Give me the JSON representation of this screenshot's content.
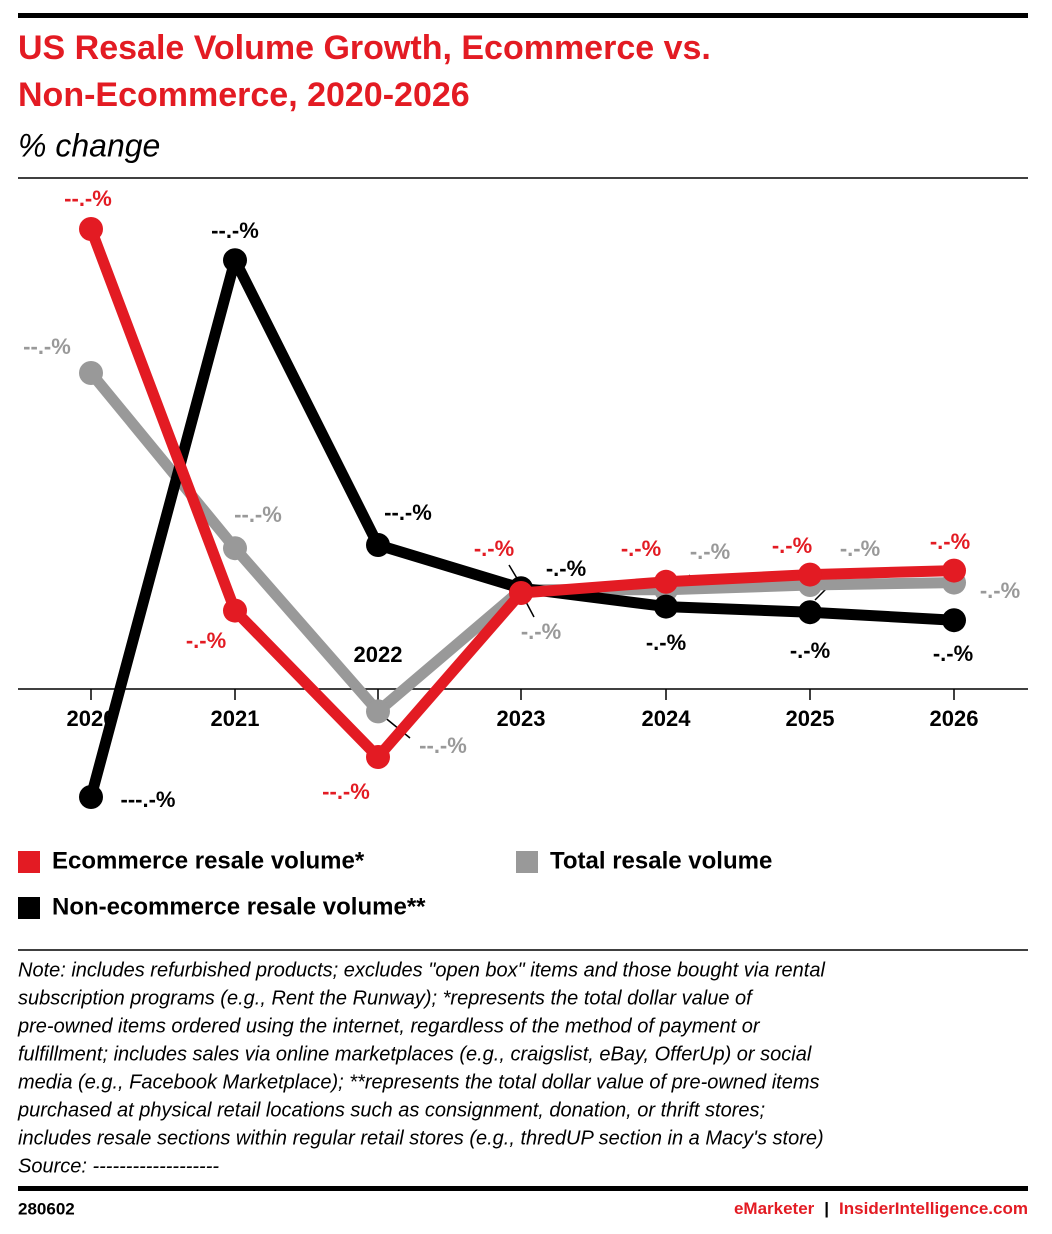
{
  "chart_data": {
    "type": "line",
    "title": [
      "US Resale Volume Growth, Ecommerce vs.",
      "Non-Ecommerce, 2020-2026"
    ],
    "subtitle": "% change",
    "categories": [
      "2020",
      "2021",
      "2022",
      "2023",
      "2024",
      "2025",
      "2026"
    ],
    "series": [
      {
        "name": "Ecommerce resale volume*",
        "color": "#e31b23",
        "values": [
          57.5,
          9.8,
          -8.5,
          12.0,
          13.4,
          14.3,
          14.8
        ],
        "value_labels": [
          "--.-%",
          "-.-%",
          "--.-%",
          "-.-%",
          "-.-%",
          "-.-%",
          "-.-%"
        ]
      },
      {
        "name": "Total resale volume",
        "color": "#999999",
        "values": [
          39.5,
          17.6,
          -2.8,
          12.4,
          12.4,
          13.0,
          13.3
        ],
        "value_labels": [
          "--.-%",
          "--.-%",
          "--.-%",
          "-.-%",
          "-.-%",
          "-.-%",
          "-.-%"
        ]
      },
      {
        "name": "Non-ecommerce resale volume**",
        "color": "#000000",
        "values": [
          -13.5,
          53.6,
          18.0,
          12.6,
          10.3,
          9.6,
          8.6
        ],
        "value_labels": [
          "---.-%",
          "--.-%",
          "--.-%",
          "-.-%",
          "-.-%",
          "-.-%",
          "-.-%"
        ]
      }
    ],
    "note": [
      "Note: includes refurbished products; excludes \"open box\" items and those bought via rental",
      "subscription programs (e.g., Rent the Runway); *represents the total dollar value of",
      "pre-owned items ordered using the internet, regardless of the method of payment or",
      "fulfillment; includes sales via online marketplaces (e.g., craigslist, eBay, OfferUp) or social",
      "media (e.g., Facebook Marketplace); **represents the total dollar value of pre-owned items",
      "purchased at physical retail locations such as consignment, donation, or thrift stores;",
      "includes resale sections within regular retail stores (e.g., thredUP section in a Macy's store)",
      "Source: -------------------"
    ],
    "chart_id": "280602",
    "brand": "eMarketer",
    "separator": "|",
    "site": "InsiderIntelligence.com"
  }
}
